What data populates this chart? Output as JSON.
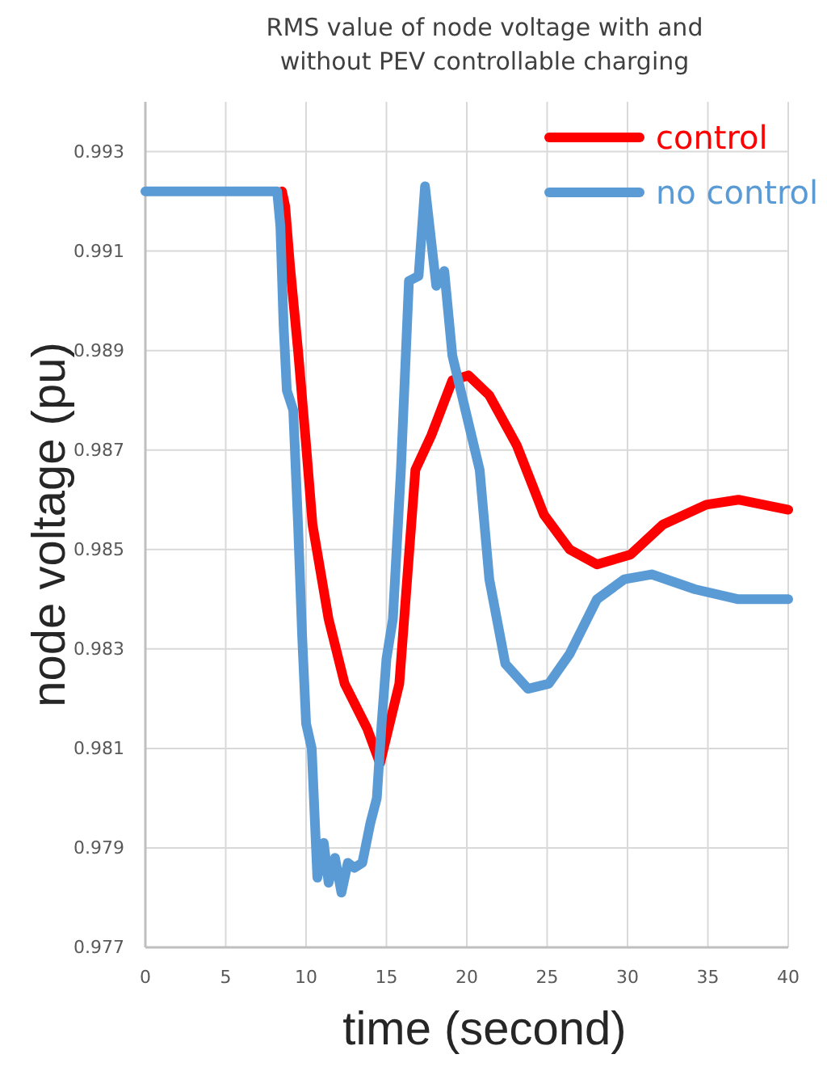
{
  "chart_data": {
    "type": "line",
    "title": "RMS value of node voltage with and without PEV controllable charging",
    "xlabel": "time (second)",
    "ylabel": "node voltage (pu)",
    "xlim": [
      0,
      40
    ],
    "xticks": [
      0,
      5,
      10,
      15,
      20,
      25,
      30,
      35,
      40
    ],
    "ylim": [
      0.977,
      0.994
    ],
    "yticks": [
      0.977,
      0.979,
      0.981,
      0.983,
      0.985,
      0.987,
      0.989,
      0.991,
      0.993
    ],
    "grid": true,
    "legend": "top right",
    "marker": "none",
    "line_style": "solid",
    "series": [
      {
        "name": "control",
        "color": "#ff0000",
        "x": [
          8.5,
          8.7,
          9.0,
          9.5,
          10.0,
          10.4,
          11.4,
          12.4,
          13.8,
          14.6,
          15.8,
          16.8,
          17.8,
          19.1,
          20.1,
          21.4,
          23.1,
          24.8,
          26.4,
          28.1,
          30.2,
          32.2,
          34.9,
          36.9,
          40
        ],
        "values": [
          0.9922,
          0.9919,
          0.9907,
          0.989,
          0.9871,
          0.9855,
          0.9836,
          0.9823,
          0.9814,
          0.9807,
          0.9823,
          0.9866,
          0.9873,
          0.9884,
          0.9885,
          0.9881,
          0.9871,
          0.9857,
          0.985,
          0.9847,
          0.9849,
          0.9855,
          0.9859,
          0.986,
          0.9858
        ]
      },
      {
        "name": "no control",
        "color": "#5b9bd5",
        "x": [
          0,
          8.2,
          8.4,
          8.6,
          8.8,
          9.2,
          9.5,
          9.75,
          10.0,
          10.35,
          10.7,
          11.1,
          11.4,
          11.8,
          12.2,
          12.6,
          13.0,
          13.5,
          14.0,
          14.4,
          14.7,
          15.0,
          15.4,
          15.9,
          16.4,
          17.0,
          17.4,
          18.1,
          18.6,
          19.1,
          20.8,
          21.4,
          22.4,
          23.8,
          25.1,
          26.4,
          28.1,
          29.8,
          31.5,
          34.2,
          36.9,
          40
        ],
        "values": [
          0.9922,
          0.9922,
          0.9915,
          0.9895,
          0.9882,
          0.9878,
          0.9855,
          0.9833,
          0.9815,
          0.981,
          0.9784,
          0.9791,
          0.9783,
          0.9788,
          0.9781,
          0.9787,
          0.9786,
          0.9787,
          0.9795,
          0.98,
          0.9815,
          0.9828,
          0.9836,
          0.9866,
          0.9904,
          0.9905,
          0.9923,
          0.9903,
          0.9906,
          0.9889,
          0.9866,
          0.9844,
          0.9827,
          0.9822,
          0.9823,
          0.9829,
          0.984,
          0.9844,
          0.9845,
          0.9842,
          0.984,
          0.984
        ]
      }
    ]
  }
}
